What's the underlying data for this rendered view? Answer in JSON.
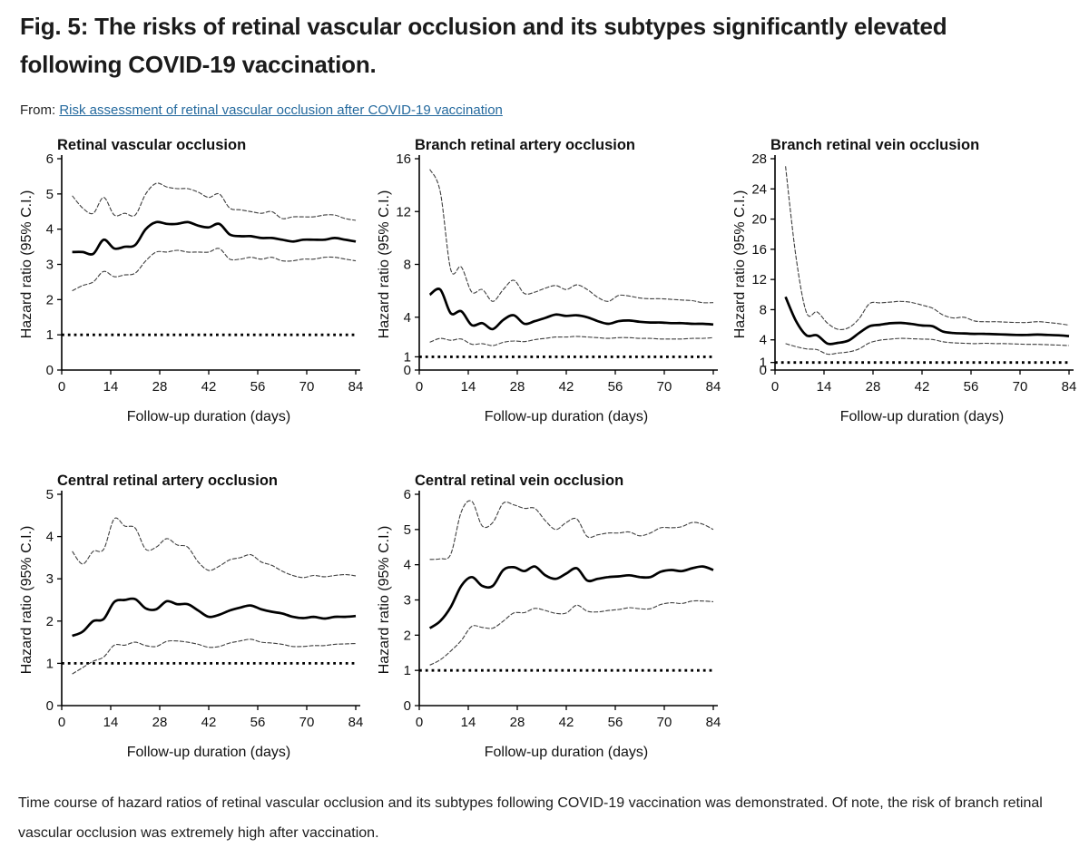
{
  "page": {
    "title": "Fig. 5: The risks of retinal vascular occlusion and its subtypes significantly elevated following COVID-19 vaccination.",
    "from_label": "From:",
    "source_link": "Risk assessment of retinal vascular occlusion after COVID-19 vaccination",
    "caption": "Time course of hazard ratios of retinal vascular occlusion and its subtypes following COVID-19 vaccination was demonstrated. Of note, the risk of branch retinal vascular occlusion was extremely high after vaccination.",
    "colors": {
      "link": "#256a9e",
      "text": "#1c1c1c",
      "line": "#000000",
      "ci_line": "#3e3e3e"
    }
  },
  "chart_data": [
    {
      "type": "line",
      "title": "Retinal vascular occlusion",
      "xlabel": "Follow-up duration (days)",
      "ylabel": "Hazard ratio (95% C.I.)",
      "xlim": [
        0,
        84
      ],
      "ylim": [
        0,
        6
      ],
      "xticks": [
        0,
        14,
        28,
        42,
        56,
        70,
        84
      ],
      "yticks": [
        0,
        1,
        2,
        3,
        4,
        5,
        6
      ],
      "reference_line_y": 1,
      "x": [
        3,
        6,
        9,
        12,
        15,
        18,
        21,
        24,
        27,
        30,
        33,
        36,
        39,
        42,
        45,
        48,
        51,
        54,
        57,
        60,
        63,
        66,
        69,
        72,
        75,
        78,
        81,
        84
      ],
      "series": [
        {
          "name": "hazard ratio",
          "style": "thick",
          "values": [
            3.35,
            3.35,
            3.3,
            3.7,
            3.45,
            3.5,
            3.55,
            4.0,
            4.2,
            4.15,
            4.15,
            4.2,
            4.1,
            4.05,
            4.15,
            3.85,
            3.8,
            3.8,
            3.75,
            3.75,
            3.7,
            3.65,
            3.7,
            3.7,
            3.7,
            3.75,
            3.7,
            3.65
          ]
        },
        {
          "name": "upper 95% CI",
          "style": "thin",
          "values": [
            4.95,
            4.6,
            4.45,
            4.9,
            4.4,
            4.45,
            4.4,
            5.0,
            5.3,
            5.2,
            5.15,
            5.15,
            5.05,
            4.9,
            5.0,
            4.6,
            4.55,
            4.5,
            4.45,
            4.5,
            4.3,
            4.35,
            4.35,
            4.35,
            4.4,
            4.4,
            4.3,
            4.25
          ]
        },
        {
          "name": "lower 95% CI",
          "style": "thin",
          "values": [
            2.25,
            2.4,
            2.5,
            2.8,
            2.65,
            2.7,
            2.75,
            3.1,
            3.35,
            3.35,
            3.4,
            3.35,
            3.35,
            3.35,
            3.45,
            3.15,
            3.15,
            3.2,
            3.15,
            3.2,
            3.1,
            3.1,
            3.15,
            3.15,
            3.2,
            3.2,
            3.15,
            3.1
          ]
        }
      ]
    },
    {
      "type": "line",
      "title": "Branch retinal artery occlusion",
      "xlabel": "Follow-up duration (days)",
      "ylabel": "Hazard ratio (95% C.I.)",
      "xlim": [
        0,
        84
      ],
      "ylim": [
        0,
        16
      ],
      "xticks": [
        0,
        14,
        28,
        42,
        56,
        70,
        84
      ],
      "yticks": [
        0,
        1,
        4,
        8,
        12,
        16
      ],
      "reference_line_y": 1,
      "x": [
        3,
        6,
        9,
        12,
        15,
        18,
        21,
        24,
        27,
        30,
        33,
        36,
        39,
        42,
        45,
        48,
        51,
        54,
        57,
        60,
        63,
        66,
        69,
        72,
        75,
        78,
        81,
        84
      ],
      "series": [
        {
          "name": "hazard ratio",
          "style": "thick",
          "values": [
            5.7,
            6.1,
            4.3,
            4.45,
            3.4,
            3.55,
            3.1,
            3.8,
            4.15,
            3.5,
            3.7,
            3.95,
            4.2,
            4.1,
            4.15,
            4.0,
            3.7,
            3.5,
            3.7,
            3.75,
            3.65,
            3.6,
            3.6,
            3.55,
            3.55,
            3.5,
            3.5,
            3.45
          ]
        },
        {
          "name": "upper 95% CI",
          "style": "thin",
          "values": [
            15.2,
            13.5,
            7.6,
            7.8,
            5.9,
            6.1,
            5.2,
            6.1,
            6.8,
            5.8,
            5.9,
            6.2,
            6.4,
            6.1,
            6.45,
            6.1,
            5.5,
            5.2,
            5.65,
            5.6,
            5.45,
            5.4,
            5.4,
            5.35,
            5.3,
            5.25,
            5.1,
            5.1
          ]
        },
        {
          "name": "lower 95% CI",
          "style": "thin",
          "values": [
            2.1,
            2.4,
            2.25,
            2.35,
            1.95,
            2.0,
            1.85,
            2.1,
            2.2,
            2.15,
            2.3,
            2.4,
            2.5,
            2.5,
            2.55,
            2.5,
            2.45,
            2.4,
            2.45,
            2.45,
            2.4,
            2.4,
            2.35,
            2.35,
            2.35,
            2.4,
            2.4,
            2.45
          ]
        }
      ]
    },
    {
      "type": "line",
      "title": "Branch retinal vein occlusion",
      "xlabel": "Follow-up duration (days)",
      "ylabel": "Hazard ratio (95% C.I.)",
      "xlim": [
        0,
        84
      ],
      "ylim": [
        0,
        28
      ],
      "xticks": [
        0,
        14,
        28,
        42,
        56,
        70,
        84
      ],
      "yticks": [
        0,
        1,
        4,
        8,
        12,
        16,
        20,
        24,
        28
      ],
      "reference_line_y": 1,
      "x": [
        3,
        6,
        9,
        12,
        15,
        18,
        21,
        24,
        27,
        30,
        33,
        36,
        39,
        42,
        45,
        48,
        51,
        54,
        57,
        60,
        63,
        66,
        69,
        72,
        75,
        78,
        81,
        84
      ],
      "series": [
        {
          "name": "hazard ratio",
          "style": "thick",
          "values": [
            9.7,
            6.5,
            4.6,
            4.6,
            3.5,
            3.6,
            3.9,
            4.9,
            5.8,
            6.0,
            6.2,
            6.25,
            6.1,
            5.9,
            5.8,
            5.1,
            4.9,
            4.85,
            4.8,
            4.8,
            4.75,
            4.7,
            4.65,
            4.65,
            4.7,
            4.65,
            4.6,
            4.5
          ]
        },
        {
          "name": "upper 95% CI",
          "style": "thin",
          "values": [
            27.0,
            15.0,
            7.6,
            7.7,
            6.2,
            5.4,
            5.6,
            6.8,
            8.8,
            8.9,
            9.0,
            9.1,
            8.95,
            8.6,
            8.2,
            7.3,
            6.9,
            7.0,
            6.5,
            6.4,
            6.4,
            6.35,
            6.3,
            6.3,
            6.4,
            6.3,
            6.15,
            5.95
          ]
        },
        {
          "name": "lower 95% CI",
          "style": "thin",
          "values": [
            3.5,
            3.1,
            2.8,
            2.7,
            2.1,
            2.25,
            2.4,
            2.8,
            3.6,
            3.95,
            4.1,
            4.2,
            4.15,
            4.1,
            4.05,
            3.75,
            3.6,
            3.55,
            3.5,
            3.55,
            3.5,
            3.5,
            3.45,
            3.4,
            3.4,
            3.35,
            3.3,
            3.25
          ]
        }
      ]
    },
    {
      "type": "line",
      "title": "Central retinal artery occlusion",
      "xlabel": "Follow-up duration (days)",
      "ylabel": "Hazard ratio (95% C.I.)",
      "xlim": [
        0,
        84
      ],
      "ylim": [
        0,
        5
      ],
      "xticks": [
        0,
        14,
        28,
        42,
        56,
        70,
        84
      ],
      "yticks": [
        0,
        1,
        2,
        3,
        4,
        5
      ],
      "reference_line_y": 1,
      "x": [
        3,
        6,
        9,
        12,
        15,
        18,
        21,
        24,
        27,
        30,
        33,
        36,
        39,
        42,
        45,
        48,
        51,
        54,
        57,
        60,
        63,
        66,
        69,
        72,
        75,
        78,
        81,
        84
      ],
      "series": [
        {
          "name": "hazard ratio",
          "style": "thick",
          "values": [
            1.65,
            1.75,
            2.0,
            2.05,
            2.45,
            2.5,
            2.52,
            2.3,
            2.28,
            2.47,
            2.4,
            2.4,
            2.25,
            2.1,
            2.15,
            2.25,
            2.32,
            2.37,
            2.28,
            2.22,
            2.18,
            2.1,
            2.07,
            2.1,
            2.06,
            2.1,
            2.1,
            2.12
          ]
        },
        {
          "name": "upper 95% CI",
          "style": "thin",
          "values": [
            3.65,
            3.35,
            3.65,
            3.7,
            4.42,
            4.25,
            4.2,
            3.7,
            3.75,
            3.95,
            3.8,
            3.75,
            3.4,
            3.2,
            3.3,
            3.45,
            3.5,
            3.57,
            3.4,
            3.32,
            3.18,
            3.08,
            3.03,
            3.08,
            3.05,
            3.08,
            3.1,
            3.07
          ]
        },
        {
          "name": "lower 95% CI",
          "style": "thin",
          "values": [
            0.75,
            0.9,
            1.05,
            1.15,
            1.43,
            1.43,
            1.5,
            1.42,
            1.4,
            1.52,
            1.53,
            1.5,
            1.45,
            1.38,
            1.4,
            1.48,
            1.53,
            1.57,
            1.5,
            1.48,
            1.45,
            1.4,
            1.4,
            1.42,
            1.42,
            1.45,
            1.46,
            1.47
          ]
        }
      ]
    },
    {
      "type": "line",
      "title": "Central retinal vein occlusion",
      "xlabel": "Follow-up duration (days)",
      "ylabel": "Hazard ratio (95% C.I.)",
      "xlim": [
        0,
        84
      ],
      "ylim": [
        0,
        6
      ],
      "xticks": [
        0,
        14,
        28,
        42,
        56,
        70,
        84
      ],
      "yticks": [
        0,
        1,
        2,
        3,
        4,
        5,
        6
      ],
      "reference_line_y": 1,
      "x": [
        3,
        6,
        9,
        12,
        15,
        18,
        21,
        24,
        27,
        30,
        33,
        36,
        39,
        42,
        45,
        48,
        51,
        54,
        57,
        60,
        63,
        66,
        69,
        72,
        75,
        78,
        81,
        84
      ],
      "series": [
        {
          "name": "hazard ratio",
          "style": "thick",
          "values": [
            2.2,
            2.4,
            2.8,
            3.4,
            3.65,
            3.4,
            3.4,
            3.85,
            3.93,
            3.82,
            3.95,
            3.7,
            3.6,
            3.75,
            3.9,
            3.55,
            3.6,
            3.65,
            3.67,
            3.7,
            3.65,
            3.65,
            3.8,
            3.85,
            3.82,
            3.9,
            3.95,
            3.85
          ]
        },
        {
          "name": "upper 95% CI",
          "style": "thin",
          "values": [
            4.15,
            4.17,
            4.3,
            5.5,
            5.8,
            5.1,
            5.2,
            5.75,
            5.7,
            5.6,
            5.6,
            5.25,
            5.0,
            5.2,
            5.3,
            4.8,
            4.85,
            4.9,
            4.9,
            4.93,
            4.82,
            4.9,
            5.05,
            5.05,
            5.08,
            5.2,
            5.15,
            5.0
          ]
        },
        {
          "name": "lower 95% CI",
          "style": "thin",
          "values": [
            1.15,
            1.3,
            1.55,
            1.85,
            2.25,
            2.22,
            2.2,
            2.4,
            2.63,
            2.64,
            2.76,
            2.7,
            2.62,
            2.63,
            2.85,
            2.68,
            2.66,
            2.7,
            2.73,
            2.78,
            2.75,
            2.75,
            2.87,
            2.92,
            2.9,
            2.97,
            2.97,
            2.95
          ]
        }
      ]
    }
  ]
}
